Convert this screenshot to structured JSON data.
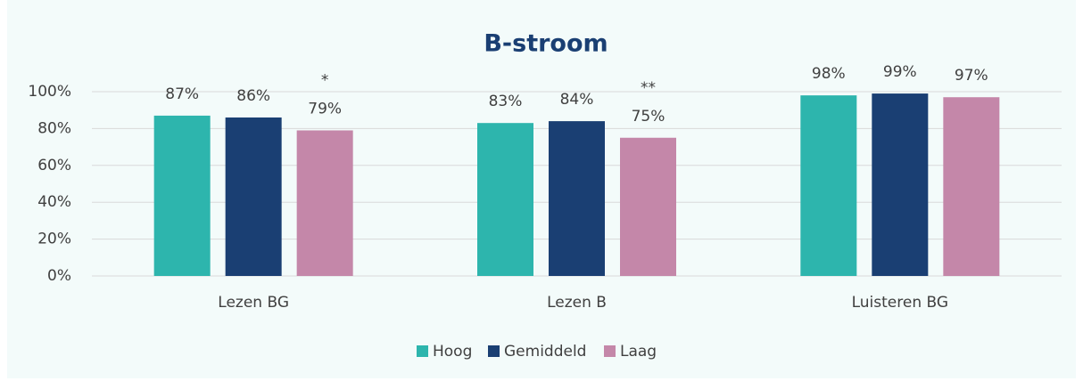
{
  "chart_data": {
    "type": "bar",
    "title": "B-stroom",
    "categories": [
      "Lezen BG",
      "Lezen B",
      "Luisteren BG"
    ],
    "series": [
      {
        "name": "Hoog",
        "color": "#2db5ad",
        "values": [
          87,
          83,
          98
        ],
        "value_labels": [
          "87%",
          "83%",
          "98%"
        ]
      },
      {
        "name": "Gemiddeld",
        "color": "#1a3f73",
        "values": [
          86,
          84,
          99
        ],
        "value_labels": [
          "86%",
          "84%",
          "99%"
        ]
      },
      {
        "name": "Laag",
        "color": "#c487a9",
        "values": [
          79,
          75,
          97
        ],
        "value_labels": [
          "79%",
          "75%",
          "97%"
        ],
        "annotations": [
          "*",
          "**",
          null
        ]
      }
    ],
    "ylim": [
      0,
      100
    ],
    "yticks": [
      {
        "value": 0,
        "label": "0%"
      },
      {
        "value": 20,
        "label": "20%"
      },
      {
        "value": 40,
        "label": "40%"
      },
      {
        "value": 60,
        "label": "60%"
      },
      {
        "value": 80,
        "label": "80%"
      },
      {
        "value": 100,
        "label": "100%"
      }
    ],
    "grid": true,
    "legend": "bottom"
  }
}
